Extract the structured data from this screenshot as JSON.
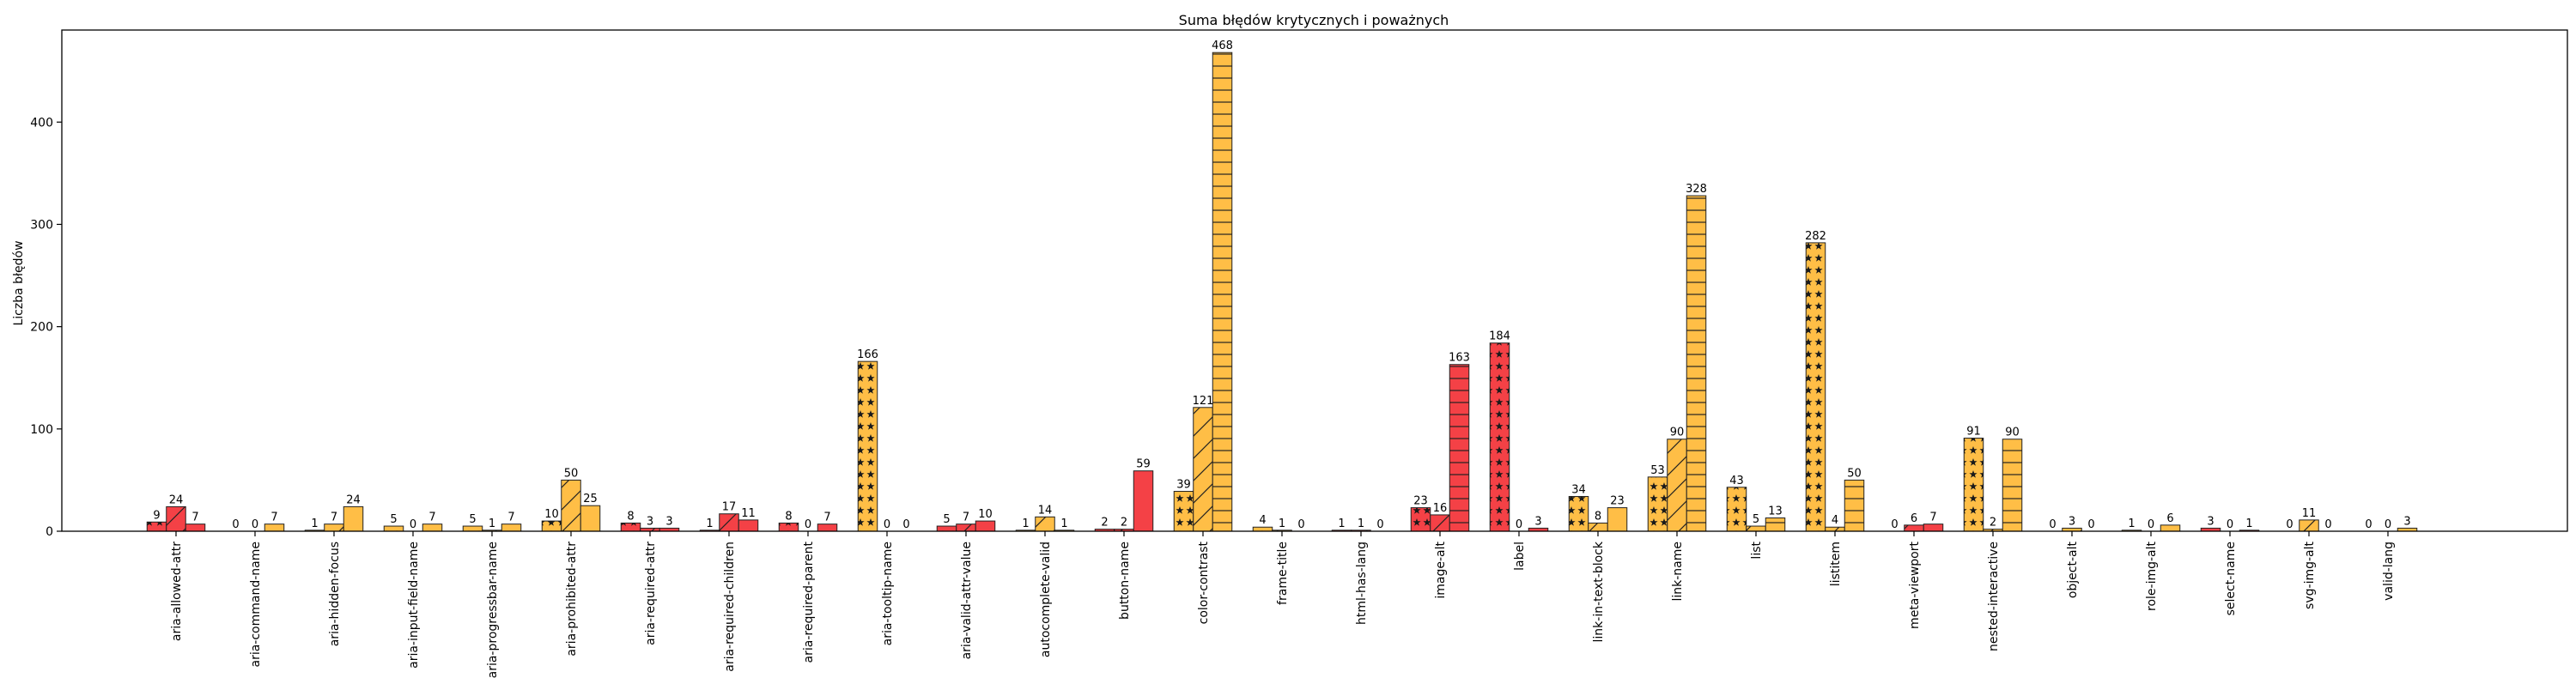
{
  "chart_data": {
    "type": "bar",
    "title": "Suma błędów krytycznych i poważnych",
    "xlabel": "",
    "ylabel": "Liczba błędów",
    "ylim": [
      0,
      490
    ],
    "yticks": [
      0,
      100,
      200,
      300,
      400
    ],
    "grid": false,
    "legend": "none",
    "colors": {
      "red": "#f44146",
      "orange": "#ffbe46",
      "edge": "#222222"
    },
    "bar_slots": 3,
    "categories": [
      "aria-allowed-attr",
      "aria-command-name",
      "aria-hidden-focus",
      "aria-input-field-name",
      "aria-progressbar-name",
      "aria-prohibited-attr",
      "aria-required-attr",
      "aria-required-children",
      "aria-required-parent",
      "aria-tooltip-name",
      "aria-valid-attr-value",
      "autocomplete-valid",
      "button-name",
      "color-contrast",
      "frame-title",
      "html-has-lang",
      "image-alt",
      "label",
      "link-in-text-block",
      "link-name",
      "list",
      "listitem",
      "meta-viewport",
      "nested-interactive",
      "object-alt",
      "role-img-alt",
      "select-name",
      "svg-img-alt",
      "valid-lang"
    ],
    "bars": [
      [
        [
          9,
          "red",
          "star"
        ],
        [
          24,
          "red",
          "slash"
        ],
        [
          7,
          "red",
          "none"
        ]
      ],
      [
        [
          0,
          "red",
          "star"
        ],
        [
          0,
          "red",
          "slash"
        ],
        [
          7,
          "orange",
          "none"
        ]
      ],
      [
        [
          1,
          "orange",
          "star"
        ],
        [
          7,
          "orange",
          "slash"
        ],
        [
          24,
          "orange",
          "none"
        ]
      ],
      [
        [
          5,
          "orange",
          "star"
        ],
        [
          0,
          "orange",
          "slash"
        ],
        [
          7,
          "orange",
          "none"
        ]
      ],
      [
        [
          5,
          "orange",
          "star"
        ],
        [
          1,
          "orange",
          "slash"
        ],
        [
          7,
          "orange",
          "none"
        ]
      ],
      [
        [
          10,
          "orange",
          "star"
        ],
        [
          50,
          "orange",
          "slash"
        ],
        [
          25,
          "orange",
          "none"
        ]
      ],
      [
        [
          8,
          "red",
          "star"
        ],
        [
          3,
          "red",
          "slash"
        ],
        [
          3,
          "red",
          "none"
        ]
      ],
      [
        [
          1,
          "red",
          "star"
        ],
        [
          17,
          "red",
          "slash"
        ],
        [
          11,
          "red",
          "none"
        ]
      ],
      [
        [
          8,
          "red",
          "star"
        ],
        [
          0,
          "red",
          "slash"
        ],
        [
          7,
          "red",
          "none"
        ]
      ],
      [
        [
          166,
          "orange",
          "star"
        ],
        [
          0,
          "orange",
          "slash"
        ],
        [
          0,
          "orange",
          "none"
        ]
      ],
      [
        [
          5,
          "red",
          "star"
        ],
        [
          7,
          "red",
          "slash"
        ],
        [
          10,
          "red",
          "none"
        ]
      ],
      [
        [
          1,
          "orange",
          "star"
        ],
        [
          14,
          "orange",
          "slash"
        ],
        [
          1,
          "orange",
          "none"
        ]
      ],
      [
        [
          2,
          "red",
          "star"
        ],
        [
          2,
          "red",
          "slash"
        ],
        [
          59,
          "red",
          "none"
        ]
      ],
      [
        [
          39,
          "orange",
          "star"
        ],
        [
          121,
          "orange",
          "slash"
        ],
        [
          468,
          "orange",
          "hline"
        ]
      ],
      [
        [
          4,
          "orange",
          "star"
        ],
        [
          1,
          "orange",
          "slash"
        ],
        [
          0,
          "orange",
          "none"
        ]
      ],
      [
        [
          1,
          "red",
          "star"
        ],
        [
          1,
          "red",
          "slash"
        ],
        [
          0,
          "red",
          "none"
        ]
      ],
      [
        [
          23,
          "red",
          "star"
        ],
        [
          16,
          "red",
          "slash"
        ],
        [
          163,
          "red",
          "hline"
        ]
      ],
      [
        [
          184,
          "red",
          "star"
        ],
        [
          0,
          "red",
          "slash"
        ],
        [
          3,
          "red",
          "none"
        ]
      ],
      [
        [
          34,
          "orange",
          "star"
        ],
        [
          8,
          "orange",
          "slash"
        ],
        [
          23,
          "orange",
          "none"
        ]
      ],
      [
        [
          53,
          "orange",
          "star"
        ],
        [
          90,
          "orange",
          "slash"
        ],
        [
          328,
          "orange",
          "hline"
        ]
      ],
      [
        [
          43,
          "orange",
          "star"
        ],
        [
          5,
          "orange",
          "slash"
        ],
        [
          13,
          "orange",
          "hline"
        ]
      ],
      [
        [
          282,
          "orange",
          "star"
        ],
        [
          4,
          "orange",
          "slash"
        ],
        [
          50,
          "orange",
          "hline"
        ]
      ],
      [
        [
          0,
          "red",
          "star"
        ],
        [
          6,
          "red",
          "slash"
        ],
        [
          7,
          "red",
          "none"
        ]
      ],
      [
        [
          91,
          "orange",
          "star"
        ],
        [
          2,
          "orange",
          "slash"
        ],
        [
          90,
          "orange",
          "hline"
        ]
      ],
      [
        [
          0,
          "orange",
          "star"
        ],
        [
          3,
          "orange",
          "slash"
        ],
        [
          0,
          "orange",
          "none"
        ]
      ],
      [
        [
          1,
          "orange",
          "star"
        ],
        [
          0,
          "orange",
          "slash"
        ],
        [
          6,
          "orange",
          "none"
        ]
      ],
      [
        [
          3,
          "red",
          "star"
        ],
        [
          0,
          "red",
          "slash"
        ],
        [
          1,
          "red",
          "none"
        ]
      ],
      [
        [
          0,
          "orange",
          "star"
        ],
        [
          11,
          "orange",
          "slash"
        ],
        [
          0,
          "orange",
          "none"
        ]
      ],
      [
        [
          0,
          "orange",
          "star"
        ],
        [
          0,
          "orange",
          "slash"
        ],
        [
          3,
          "orange",
          "none"
        ]
      ]
    ]
  }
}
